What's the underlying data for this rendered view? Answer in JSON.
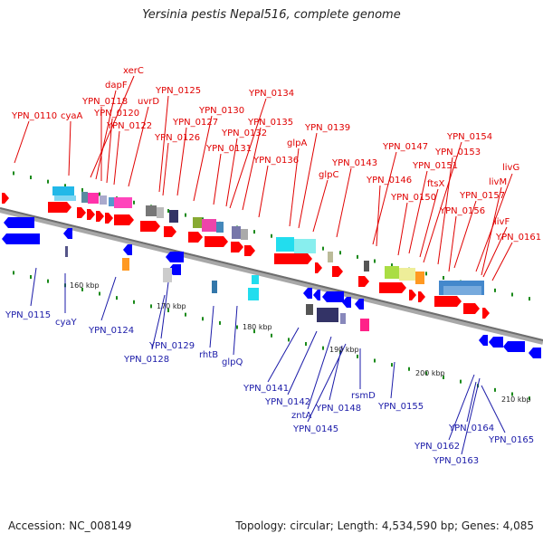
{
  "title": "Yersinia pestis Nepal516, complete genome",
  "footer": {
    "accession": "Accession: NC_008149",
    "summary": "Topology: circular; Length: 4,534,590 bp; Genes: 4,085"
  },
  "colors": {
    "forward_label": "#e00000",
    "reverse_label": "#1a1aa8",
    "forward_gene": "#ff0000",
    "reverse_gene": "#0000ff",
    "tick": "#1a8a1a",
    "backbone": "#909090"
  },
  "kbp_labels": [
    "160 kbp",
    "170 kbp",
    "180 kbp",
    "190 kbp",
    "200 kbp",
    "210 kbp"
  ],
  "forward_labels": [
    "YPN_0110",
    "cyaA",
    "xerC",
    "dapF",
    "YPN_0118",
    "YPN_0120",
    "YPN_0122",
    "uvrD",
    "YPN_0125",
    "YPN_0127",
    "YPN_0126",
    "YPN_0130",
    "YPN_0131",
    "YPN_0132",
    "YPN_0134",
    "YPN_0135",
    "YPN_0136",
    "glpA",
    "YPN_0139",
    "glpC",
    "YPN_0143",
    "YPN_0147",
    "YPN_0146",
    "YPN_0151",
    "YPN_0150",
    "ftsX",
    "YPN_0154",
    "YPN_0153",
    "YPN_0157",
    "YPN_0156",
    "livG",
    "livM",
    "livF",
    "YPN_0161"
  ],
  "reverse_labels": [
    "YPN_0115",
    "cyaY",
    "YPN_0124",
    "YPN_0129",
    "YPN_0128",
    "rhtB",
    "glpQ",
    "YPN_0141",
    "YPN_0142",
    "zntA",
    "YPN_0145",
    "YPN_0148",
    "rsmD",
    "YPN_0155",
    "YPN_0162",
    "YPN_0163",
    "YPN_0164",
    "YPN_0165"
  ]
}
